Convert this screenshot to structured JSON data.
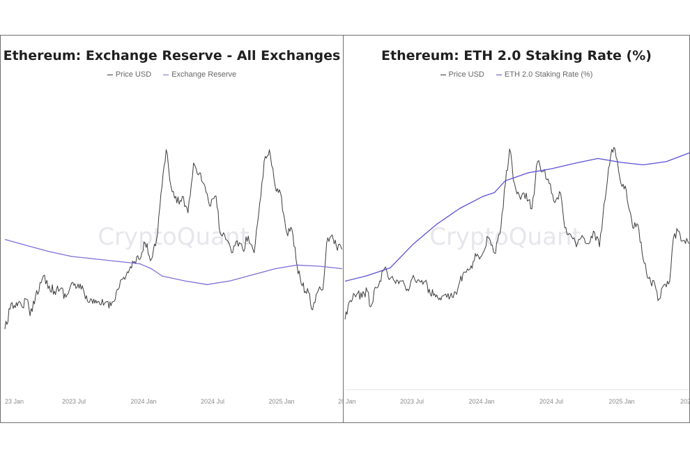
{
  "chart_data": [
    {
      "type": "line",
      "title": "Ethereum: Exchange Reserve - All Exchanges",
      "watermark": "CryptoQuant",
      "x_tick_labels": [
        "23 Jan",
        "2023 Jul",
        "2024 Jan",
        "2024 Jul",
        "2025 Jan",
        "20"
      ],
      "x_ticks": [
        "2023-01-01",
        "2023-07-01",
        "2024-01-01",
        "2024-07-01",
        "2025-01-01",
        "2025-07-01"
      ],
      "xlim": [
        "2023-01-01",
        "2025-07-01"
      ],
      "ylim_price": [
        1000,
        4200
      ],
      "ylim_series": [
        16,
        24
      ],
      "grid": false,
      "legend_position": "top-center",
      "series": [
        {
          "name": "Price USD",
          "color": "#3a3a3a",
          "x": [
            "2023-01-01",
            "2023-01-15",
            "2023-02-01",
            "2023-02-15",
            "2023-03-01",
            "2023-03-10",
            "2023-03-25",
            "2023-04-15",
            "2023-05-01",
            "2023-05-15",
            "2023-06-01",
            "2023-06-15",
            "2023-07-01",
            "2023-07-15",
            "2023-08-01",
            "2023-08-15",
            "2023-09-01",
            "2023-09-15",
            "2023-10-01",
            "2023-10-15",
            "2023-11-01",
            "2023-11-15",
            "2023-12-01",
            "2023-12-15",
            "2024-01-01",
            "2024-01-15",
            "2024-02-01",
            "2024-02-15",
            "2024-03-01",
            "2024-03-12",
            "2024-03-25",
            "2024-04-10",
            "2024-04-25",
            "2024-05-10",
            "2024-05-25",
            "2024-06-10",
            "2024-06-25",
            "2024-07-10",
            "2024-07-25",
            "2024-08-05",
            "2024-08-20",
            "2024-09-05",
            "2024-09-20",
            "2024-10-05",
            "2024-10-20",
            "2024-11-05",
            "2024-11-20",
            "2024-12-05",
            "2024-12-16",
            "2025-01-01",
            "2025-01-15",
            "2025-02-01",
            "2025-02-15",
            "2025-03-01",
            "2025-03-15",
            "2025-04-01",
            "2025-04-09",
            "2025-04-25",
            "2025-05-10",
            "2025-05-20",
            "2025-06-01",
            "2025-06-15",
            "2025-06-30"
          ],
          "y": [
            1250,
            1550,
            1650,
            1600,
            1700,
            1450,
            1750,
            2050,
            1900,
            1820,
            1860,
            1730,
            1950,
            1880,
            1850,
            1650,
            1640,
            1620,
            1660,
            1600,
            1850,
            2000,
            2100,
            2250,
            2300,
            2550,
            2300,
            2600,
            3400,
            3950,
            3400,
            3150,
            3250,
            3000,
            3750,
            3600,
            3400,
            3100,
            3250,
            2700,
            2600,
            2400,
            2580,
            2450,
            2650,
            2400,
            3150,
            3850,
            3950,
            3400,
            3300,
            2700,
            2750,
            2200,
            1900,
            1800,
            1550,
            1800,
            1850,
            2550,
            2650,
            2500,
            2450
          ]
        },
        {
          "name": "Exchange Reserve",
          "color": "#7b6fd6",
          "x": [
            "2023-01-01",
            "2023-03-01",
            "2023-05-01",
            "2023-07-01",
            "2023-09-01",
            "2023-11-01",
            "2024-01-01",
            "2024-02-01",
            "2024-03-01",
            "2024-05-01",
            "2024-07-01",
            "2024-09-01",
            "2024-11-01",
            "2025-01-01",
            "2025-03-01",
            "2025-05-01",
            "2025-07-01"
          ],
          "y": [
            21.0,
            20.5,
            20.0,
            19.6,
            19.4,
            19.2,
            19.0,
            18.6,
            18.0,
            17.6,
            17.3,
            17.6,
            18.1,
            18.6,
            18.9,
            18.8,
            18.6
          ]
        }
      ]
    },
    {
      "type": "line",
      "title": "Ethereum: ETH 2.0 Staking Rate (%)",
      "watermark": "CryptoQuant",
      "x_tick_labels": [
        "Jan",
        "2023 Jul",
        "2024 Jan",
        "2024 Jul",
        "2025 Jan",
        "202"
      ],
      "x_ticks": [
        "2023-01-01",
        "2023-07-01",
        "2024-01-01",
        "2024-07-01",
        "2025-01-01",
        "2025-07-01"
      ],
      "xlim": [
        "2023-01-01",
        "2025-07-01"
      ],
      "ylim_price": [
        1000,
        4200
      ],
      "ylim_series": [
        10,
        32
      ],
      "grid": false,
      "legend_position": "top-center",
      "series": [
        {
          "name": "Price USD",
          "color": "#3a3a3a",
          "x": [
            "2023-01-01",
            "2023-01-15",
            "2023-02-01",
            "2023-02-15",
            "2023-03-01",
            "2023-03-10",
            "2023-03-25",
            "2023-04-15",
            "2023-05-01",
            "2023-05-15",
            "2023-06-01",
            "2023-06-15",
            "2023-07-01",
            "2023-07-15",
            "2023-08-01",
            "2023-08-15",
            "2023-09-01",
            "2023-09-15",
            "2023-10-01",
            "2023-10-15",
            "2023-11-01",
            "2023-11-15",
            "2023-12-01",
            "2023-12-15",
            "2024-01-01",
            "2024-01-15",
            "2024-02-01",
            "2024-02-15",
            "2024-03-01",
            "2024-03-12",
            "2024-03-25",
            "2024-04-10",
            "2024-04-25",
            "2024-05-10",
            "2024-05-25",
            "2024-06-10",
            "2024-06-25",
            "2024-07-10",
            "2024-07-25",
            "2024-08-05",
            "2024-08-20",
            "2024-09-05",
            "2024-09-20",
            "2024-10-05",
            "2024-10-20",
            "2024-11-05",
            "2024-11-20",
            "2024-12-05",
            "2024-12-16",
            "2025-01-01",
            "2025-01-15",
            "2025-02-01",
            "2025-02-15",
            "2025-03-01",
            "2025-03-15",
            "2025-04-01",
            "2025-04-09",
            "2025-04-25",
            "2025-05-10",
            "2025-05-20",
            "2025-06-01",
            "2025-06-15",
            "2025-06-30"
          ],
          "y": [
            1250,
            1550,
            1650,
            1600,
            1700,
            1450,
            1750,
            2050,
            1900,
            1820,
            1860,
            1730,
            1950,
            1880,
            1850,
            1650,
            1640,
            1620,
            1660,
            1600,
            1850,
            2000,
            2100,
            2250,
            2300,
            2550,
            2300,
            2600,
            3400,
            3950,
            3400,
            3150,
            3250,
            3000,
            3750,
            3600,
            3400,
            3100,
            3250,
            2700,
            2600,
            2400,
            2580,
            2450,
            2650,
            2400,
            3150,
            3850,
            3950,
            3400,
            3300,
            2700,
            2750,
            2200,
            1900,
            1800,
            1550,
            1800,
            1850,
            2550,
            2650,
            2500,
            2450
          ]
        },
        {
          "name": "ETH 2.0 Staking Rate (%)",
          "color": "#5b4fd6",
          "x": [
            "2023-01-01",
            "2023-03-01",
            "2023-05-01",
            "2023-07-01",
            "2023-09-01",
            "2023-11-01",
            "2024-01-01",
            "2024-02-01",
            "2024-03-01",
            "2024-04-01",
            "2024-05-01",
            "2024-07-01",
            "2024-09-01",
            "2024-11-01",
            "2025-01-01",
            "2025-03-01",
            "2025-05-01",
            "2025-07-01"
          ],
          "y": [
            13.3,
            14.0,
            15.0,
            18.0,
            20.5,
            22.5,
            24.0,
            24.5,
            26.0,
            26.5,
            27.0,
            27.5,
            28.2,
            28.8,
            28.3,
            28.0,
            28.4,
            29.5
          ]
        }
      ]
    }
  ]
}
